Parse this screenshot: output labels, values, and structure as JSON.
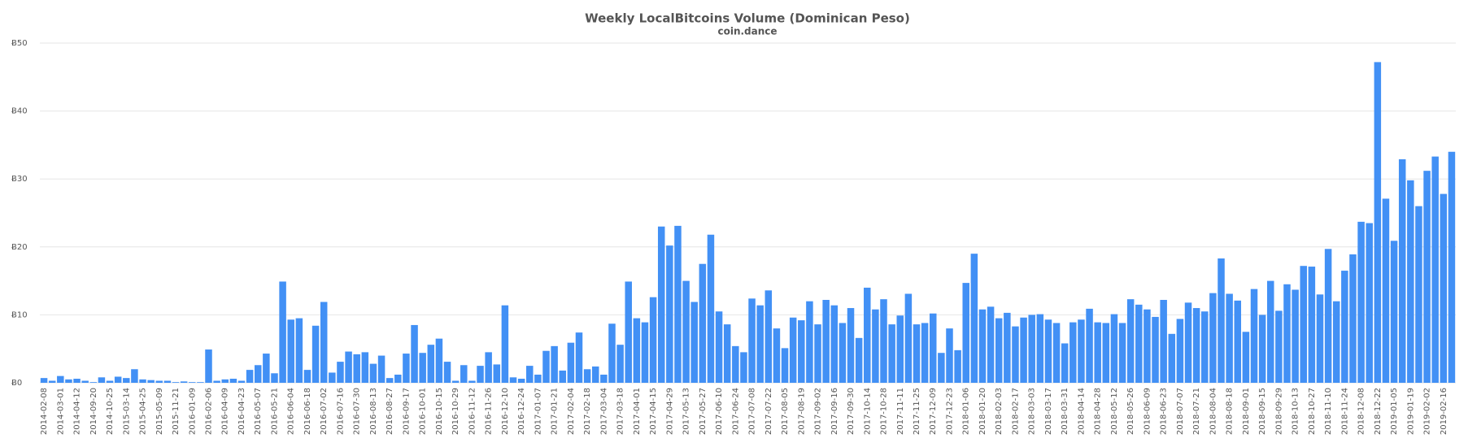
{
  "chart_data": {
    "type": "bar",
    "title": "Weekly LocalBitcoins Volume (Dominican Peso)",
    "subtitle": "coin.dance",
    "categories": [
      "2014-02-08",
      null,
      "2014-03-01",
      null,
      "2014-04-12",
      null,
      "2014-09-20",
      null,
      "2014-10-25",
      null,
      "2015-03-14",
      null,
      "2015-04-25",
      null,
      "2015-05-09",
      null,
      "2015-11-21",
      null,
      "2016-01-09",
      null,
      "2016-02-06",
      null,
      "2016-04-09",
      null,
      "2016-04-23",
      null,
      "2016-05-07",
      null,
      "2016-05-21",
      null,
      "2016-06-04",
      null,
      "2016-06-18",
      null,
      "2016-07-02",
      null,
      "2016-07-16",
      null,
      "2016-07-30",
      null,
      "2016-08-13",
      null,
      "2016-08-27",
      null,
      "2016-09-17",
      null,
      "2016-10-01",
      null,
      "2016-10-15",
      null,
      "2016-10-29",
      null,
      "2016-11-12",
      null,
      "2016-11-26",
      null,
      "2016-12-10",
      null,
      "2016-12-24",
      null,
      "2017-01-07",
      null,
      "2017-01-21",
      null,
      "2017-02-04",
      null,
      "2017-02-18",
      null,
      "2017-03-04",
      null,
      "2017-03-18",
      null,
      "2017-04-01",
      null,
      "2017-04-15",
      null,
      "2017-04-29",
      null,
      "2017-05-13",
      null,
      "2017-05-27",
      null,
      "2017-06-10",
      null,
      "2017-06-24",
      null,
      "2017-07-08",
      null,
      "2017-07-22",
      null,
      "2017-08-05",
      null,
      "2017-08-19",
      null,
      "2017-09-02",
      null,
      "2017-09-16",
      null,
      "2017-09-30",
      null,
      "2017-10-14",
      null,
      "2017-10-28",
      null,
      "2017-11-11",
      null,
      "2017-11-25",
      null,
      "2017-12-09",
      null,
      "2017-12-23",
      null,
      "2018-01-06",
      null,
      "2018-01-20",
      null,
      "2018-02-03",
      null,
      "2018-02-17",
      null,
      "2018-03-03",
      null,
      "2018-03-17",
      null,
      "2018-03-31",
      null,
      "2018-04-14",
      null,
      "2018-04-28",
      null,
      "2018-05-12",
      null,
      "2018-05-26",
      null,
      "2018-06-09",
      null,
      "2018-06-23",
      null,
      "2018-07-07",
      null,
      "2018-07-21",
      null,
      "2018-08-04",
      null,
      "2018-08-18",
      null,
      "2018-09-01",
      null,
      "2018-09-15",
      null,
      "2018-09-29",
      null,
      "2018-10-13",
      null,
      "2018-10-27",
      null,
      "2018-11-10",
      null,
      "2018-11-24",
      null,
      "2018-12-08",
      null,
      "2018-12-22",
      null,
      "2019-01-05",
      null,
      "2019-01-19",
      null,
      "2019-02-02",
      null,
      "2019-02-16",
      null
    ],
    "values": [
      0.7,
      0.3,
      1.0,
      0.5,
      0.6,
      0.3,
      0.1,
      0.8,
      0.3,
      0.9,
      0.7,
      2.0,
      0.5,
      0.4,
      0.3,
      0.3,
      0.1,
      0.2,
      0.1,
      0.1,
      4.9,
      0.3,
      0.5,
      0.6,
      0.3,
      1.9,
      2.6,
      4.3,
      1.4,
      14.9,
      9.3,
      9.5,
      1.9,
      8.4,
      11.9,
      1.5,
      3.1,
      4.6,
      4.2,
      4.5,
      2.8,
      4.0,
      0.7,
      1.2,
      4.3,
      8.5,
      4.4,
      5.6,
      6.5,
      3.1,
      0.3,
      2.6,
      0.3,
      2.5,
      4.5,
      2.7,
      11.4,
      0.8,
      0.6,
      2.5,
      1.2,
      4.7,
      5.4,
      1.8,
      5.9,
      7.4,
      2.0,
      2.4,
      1.2,
      8.7,
      5.6,
      14.9,
      9.5,
      8.9,
      12.6,
      23.0,
      20.2,
      23.1,
      15.0,
      11.9,
      17.5,
      21.8,
      10.5,
      8.6,
      5.4,
      4.5,
      12.4,
      11.4,
      13.6,
      8.0,
      5.1,
      9.6,
      9.2,
      12.0,
      8.6,
      12.2,
      11.4,
      8.8,
      11.0,
      6.6,
      14.0,
      10.8,
      12.3,
      8.6,
      9.9,
      13.1,
      8.6,
      8.8,
      10.2,
      4.4,
      8.0,
      4.8,
      14.7,
      19.0,
      10.8,
      11.2,
      9.5,
      10.3,
      8.3,
      9.6,
      10.0,
      10.1,
      9.3,
      8.8,
      5.8,
      8.9,
      9.3,
      10.9,
      8.9,
      8.8,
      10.1,
      8.8,
      12.3,
      11.5,
      10.8,
      9.7,
      12.2,
      7.2,
      9.4,
      11.8,
      11.0,
      10.5,
      13.2,
      18.3,
      13.1,
      12.1,
      7.5,
      13.8,
      10.0,
      15.0,
      10.6,
      14.5,
      13.7,
      17.2,
      17.1,
      13.0,
      19.7,
      12.0,
      16.5,
      18.9,
      23.7,
      23.5,
      47.2,
      27.1,
      20.9,
      32.9,
      29.8,
      26.0,
      31.2,
      33.3,
      27.8,
      34.0
    ],
    "color": "#4290f5",
    "ylim": [
      0,
      50
    ],
    "yticks": [
      {
        "value": 0,
        "label": "Ƀ0"
      },
      {
        "value": 10,
        "label": "Ƀ10"
      },
      {
        "value": 20,
        "label": "Ƀ20"
      },
      {
        "value": 30,
        "label": "Ƀ30"
      },
      {
        "value": 40,
        "label": "Ƀ40"
      },
      {
        "value": 50,
        "label": "Ƀ50"
      }
    ],
    "grid": true
  }
}
